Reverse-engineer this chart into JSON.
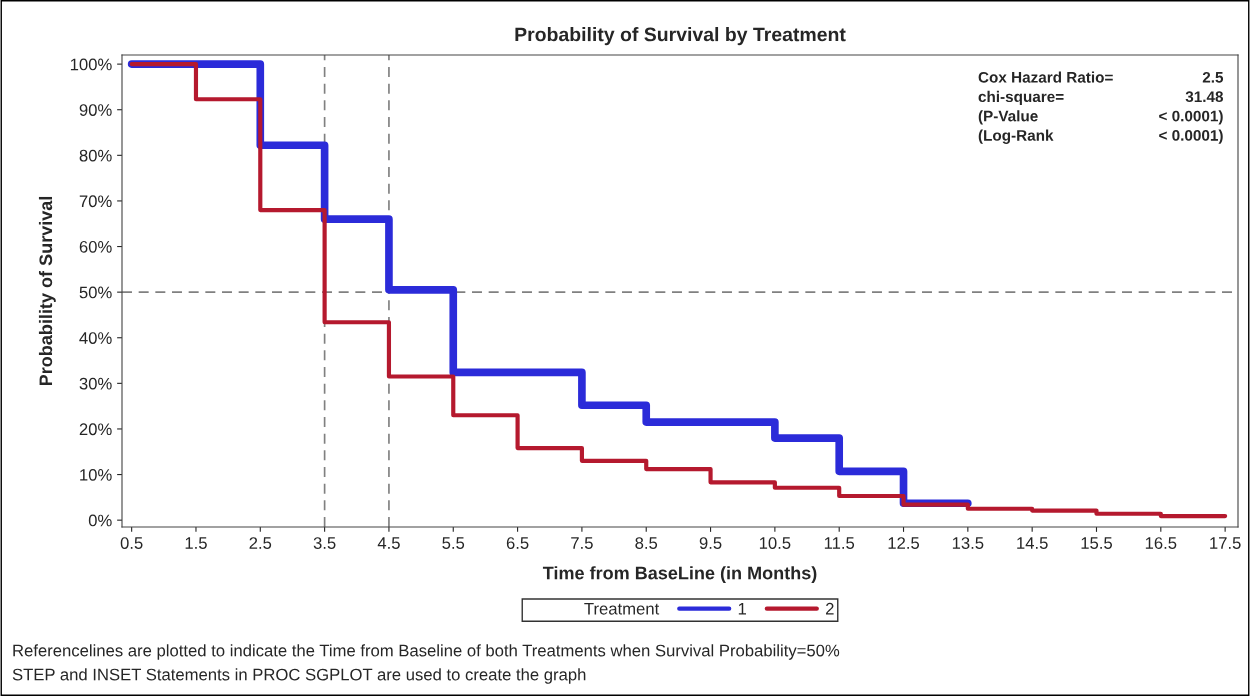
{
  "chart_data": {
    "type": "step",
    "title": "Probability of Survival by Treatment",
    "xlabel": "Time from BaseLine (in Months)",
    "ylabel": "Probability of Survival",
    "legend_title": "Treatment",
    "legend": "bottom",
    "series": [
      {
        "name": "1",
        "color": "#2b2bd9",
        "x": [
          0.5,
          1.5,
          2.5,
          3.5,
          4.5,
          5.5,
          6.5,
          7.5,
          8.5,
          9.5,
          10.5,
          11.5,
          12.5,
          13.5
        ],
        "values": [
          100,
          100,
          82.2,
          66,
          50.5,
          32.4,
          32.4,
          25.2,
          21.5,
          21.5,
          18,
          10.7,
          3.7,
          3.7
        ]
      },
      {
        "name": "2",
        "color": "#b5192e",
        "x": [
          0.5,
          1.5,
          2.5,
          3.5,
          4.5,
          5.5,
          6.5,
          7.5,
          8.5,
          9.5,
          10.5,
          11.5,
          12.5,
          13.5,
          14.5,
          15.5,
          16.5,
          17.5
        ],
        "values": [
          100,
          92.3,
          68,
          43.4,
          31.5,
          23,
          15.8,
          13,
          11.2,
          8.3,
          7.1,
          5.3,
          3.4,
          2.5,
          2.1,
          1.4,
          0.9,
          0.9
        ]
      }
    ],
    "xlim": [
      0.35,
      17.7
    ],
    "xticks": [
      0.5,
      1.5,
      2.5,
      3.5,
      4.5,
      5.5,
      6.5,
      7.5,
      8.5,
      9.5,
      10.5,
      11.5,
      12.5,
      13.5,
      14.5,
      15.5,
      16.5,
      17.5
    ],
    "ylim": [
      -1.5,
      102
    ],
    "yticks": [
      {
        "value": 0,
        "label": "0%"
      },
      {
        "value": 10,
        "label": "10%"
      },
      {
        "value": 20,
        "label": "20%"
      },
      {
        "value": 30,
        "label": "30%"
      },
      {
        "value": 40,
        "label": "40%"
      },
      {
        "value": 50,
        "label": "50%"
      },
      {
        "value": 60,
        "label": "60%"
      },
      {
        "value": 70,
        "label": "70%"
      },
      {
        "value": 80,
        "label": "80%"
      },
      {
        "value": 90,
        "label": "90%"
      },
      {
        "value": 100,
        "label": "100%"
      }
    ],
    "ref_lines": [
      {
        "axis": "x",
        "value": 3.5,
        "color": "#808080",
        "line_style": "dashed"
      },
      {
        "axis": "x",
        "value": 4.5,
        "color": "#808080",
        "line_style": "dashed"
      },
      {
        "axis": "y",
        "value": 50,
        "color": "#808080",
        "line_style": "dashed"
      }
    ],
    "grid": false,
    "line_style": "solid",
    "marker": "none",
    "annotations": [
      "Cox Hazard Ratio=",
      "2.5",
      "chi-square=",
      "31.48",
      "(P-Value",
      "< 0.0001)",
      "(Log-Rank",
      "< 0.0001)",
      "Referencelines are plotted to indicate the Time from Baseline of both Treatments when Survival Probability=50%",
      "STEP and INSET Statements in PROC SGPLOT are used to create the graph"
    ]
  }
}
